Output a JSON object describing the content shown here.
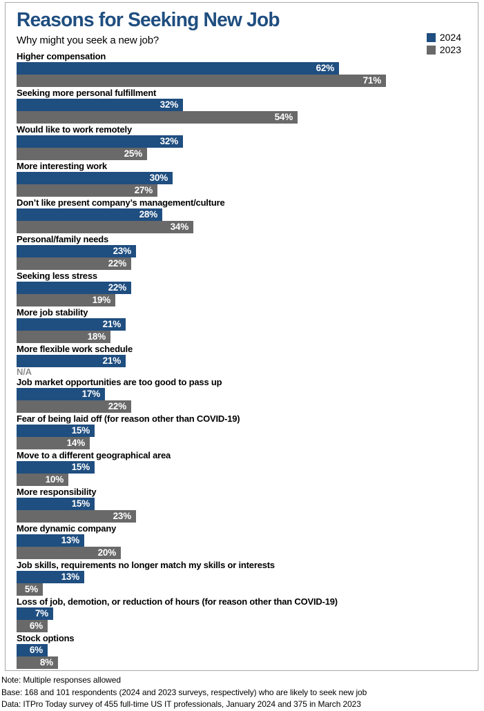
{
  "title": "Reasons for Seeking New Job",
  "subtitle": "Why might you seek a new job?",
  "colors": {
    "accent_blue": "#1f4e80",
    "accent_gray": "#696969",
    "na_gray": "#8c8c8c",
    "frame_border": "#a9a9a9"
  },
  "legend": {
    "items": [
      {
        "label": "2024",
        "color": "#1f4e80"
      },
      {
        "label": "2023",
        "color": "#696969"
      }
    ]
  },
  "chart_data": {
    "type": "bar",
    "orientation": "horizontal",
    "title": "Reasons for Seeking New Job",
    "subtitle": "Why might you seek a new job?",
    "value_suffix": "%",
    "na_label": "N/A",
    "xlim": [
      0,
      86
    ],
    "grid": false,
    "legend_position": "top-right",
    "categories": [
      "Higher compensation",
      "Seeking more personal fulfillment",
      "Would like to work remotely",
      "More interesting work",
      "Don’t like present company’s management/culture",
      "Personal/family needs",
      "Seeking less stress",
      "More job stability",
      "More flexible work schedule",
      "Job market opportunities are too good to pass up",
      "Fear of being laid off (for reason other than COVID-19)",
      "Move to a different geographical area",
      "More responsibility",
      "More dynamic company",
      "Job skills, requirements no longer match my skills or interests",
      "Loss of job, demotion, or reduction of hours (for reason other than COVID-19)",
      "Stock options"
    ],
    "series": [
      {
        "name": "2024",
        "color": "#1f4e80",
        "values": [
          62,
          32,
          32,
          30,
          28,
          23,
          22,
          21,
          21,
          17,
          15,
          15,
          15,
          13,
          13,
          7,
          6
        ]
      },
      {
        "name": "2023",
        "color": "#696969",
        "values": [
          71,
          54,
          25,
          27,
          34,
          22,
          19,
          18,
          null,
          22,
          14,
          10,
          23,
          20,
          5,
          6,
          8
        ]
      }
    ]
  },
  "footer": {
    "note": "Note: Multiple responses allowed",
    "base": "Base: 168 and 101 respondents (2024 and 2023 surveys, respectively) who are likely to seek new job",
    "data_source": "Data: ITPro Today survey of 455 full-time US IT professionals, January 2024 and 375 in March 2023"
  }
}
